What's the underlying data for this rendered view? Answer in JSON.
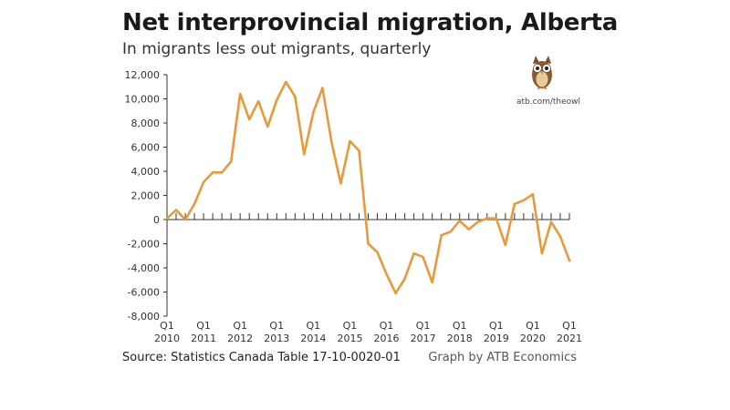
{
  "header": {
    "title": "Net interprovincial migration, Alberta",
    "subtitle": "In migrants less out migrants, quarterly"
  },
  "footer": {
    "source": "Source: Statistics Canada Table 17-10-0020-01",
    "credit": "Graph by ATB Economics"
  },
  "logo": {
    "icon": "owl-icon",
    "url": "atb.com/theowl"
  },
  "colors": {
    "line": "#E8993A",
    "axis": "#333333",
    "text": "#333333"
  },
  "chart_data": {
    "type": "line",
    "title": "Net interprovincial migration, Alberta",
    "subtitle": "In migrants less out migrants, quarterly",
    "ylim": [
      -8000,
      12000
    ],
    "yticks": [
      -8000,
      -6000,
      -4000,
      -2000,
      0,
      2000,
      4000,
      6000,
      8000,
      10000,
      12000
    ],
    "ytick_labels": [
      "-8,000",
      "-6,000",
      "-4,000",
      "-2,000",
      "0",
      "2,000",
      "4,000",
      "6,000",
      "8,000",
      "10,000",
      "12,000"
    ],
    "x_tick_labels": [
      {
        "q": "Q1",
        "year": "2010"
      },
      {
        "q": "Q1",
        "year": "2011"
      },
      {
        "q": "Q1",
        "year": "2012"
      },
      {
        "q": "Q1",
        "year": "2013"
      },
      {
        "q": "Q1",
        "year": "2014"
      },
      {
        "q": "Q1",
        "year": "2015"
      },
      {
        "q": "Q1",
        "year": "2016"
      },
      {
        "q": "Q1",
        "year": "2017"
      },
      {
        "q": "Q1",
        "year": "2018"
      },
      {
        "q": "Q1",
        "year": "2019"
      },
      {
        "q": "Q1",
        "year": "2020"
      },
      {
        "q": "Q1",
        "year": "2021"
      }
    ],
    "grid": false,
    "series": [
      {
        "x": [
          "2010 Q1",
          "2010 Q2",
          "2010 Q3",
          "2010 Q4",
          "2011 Q1",
          "2011 Q2",
          "2011 Q3",
          "2011 Q4",
          "2012 Q1",
          "2012 Q2",
          "2012 Q3",
          "2012 Q4",
          "2013 Q1",
          "2013 Q2",
          "2013 Q3",
          "2013 Q4",
          "2014 Q1",
          "2014 Q2",
          "2014 Q3",
          "2014 Q4",
          "2015 Q1",
          "2015 Q2",
          "2015 Q3",
          "2015 Q4",
          "2016 Q1",
          "2016 Q2",
          "2016 Q3",
          "2016 Q4",
          "2017 Q1",
          "2017 Q2",
          "2017 Q3",
          "2017 Q4",
          "2018 Q1",
          "2018 Q2",
          "2018 Q3",
          "2018 Q4",
          "2019 Q1",
          "2019 Q2",
          "2019 Q3",
          "2019 Q4",
          "2020 Q1",
          "2020 Q2",
          "2020 Q3",
          "2020 Q4",
          "2021 Q1"
        ],
        "values": [
          100,
          800,
          0,
          1300,
          3100,
          3900,
          3900,
          4800,
          10400,
          8300,
          9800,
          7700,
          9900,
          11400,
          10200,
          5400,
          8900,
          10900,
          6400,
          3000,
          6500,
          5700,
          -2000,
          -2700,
          -4500,
          -6100,
          -4900,
          -2800,
          -3100,
          -5200,
          -1300,
          -1000,
          -100,
          -800,
          -200,
          100,
          100,
          -2100,
          1300,
          1600,
          2100,
          -2800,
          -200,
          -1400,
          -3400
        ]
      }
    ]
  }
}
